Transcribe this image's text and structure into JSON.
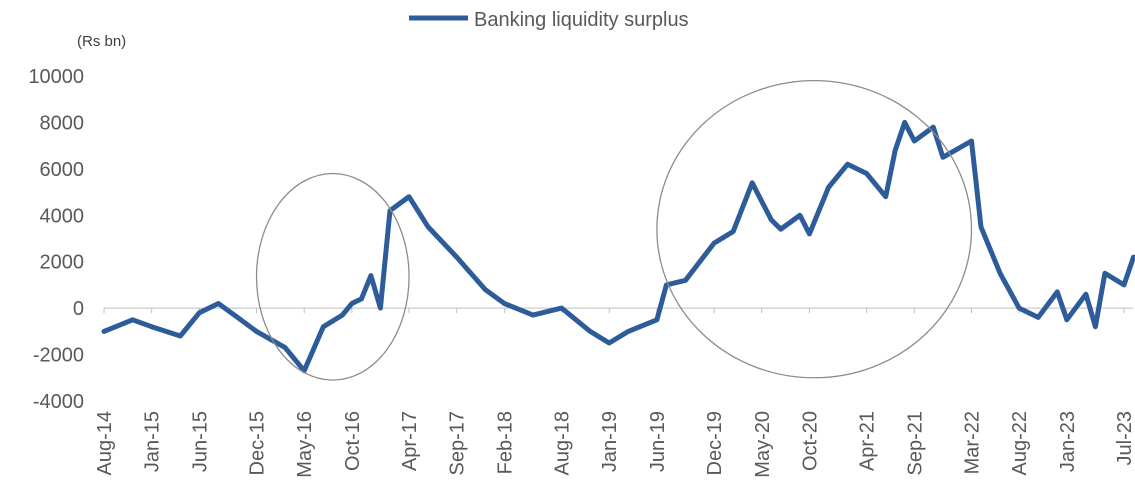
{
  "chart_data": {
    "type": "line",
    "unit_label": "(Rs bn)",
    "legend_position": "top-center",
    "grid": false,
    "ylim": [
      -4000,
      10000
    ],
    "y_ticks": [
      10000,
      8000,
      6000,
      4000,
      2000,
      0,
      -2000,
      -4000
    ],
    "y_tick_labels": [
      "10000",
      "8000",
      "6000",
      "4000",
      "2000",
      "0",
      "-2000",
      "-4000"
    ],
    "x_tick_labels": [
      "Aug-14",
      "Jan-15",
      "Jun-15",
      "Dec-15",
      "May-16",
      "Oct-16",
      "Apr-17",
      "Sep-17",
      "Feb-18",
      "Aug-18",
      "Jan-19",
      "Jun-19",
      "Dec-19",
      "May-20",
      "Oct-20",
      "Apr-21",
      "Sep-21",
      "Mar-22",
      "Aug-22",
      "Jan-23",
      "Jul-23"
    ],
    "series": [
      {
        "name": "Banking liquidity surplus",
        "color": "#2E5C9A",
        "x": [
          "2014-08",
          "2014-11",
          "2015-01",
          "2015-04",
          "2015-06",
          "2015-08",
          "2015-10",
          "2015-12",
          "2016-03",
          "2016-05",
          "2016-07",
          "2016-09",
          "2016-10",
          "2016-11",
          "2016-12",
          "2017-01",
          "2017-02",
          "2017-04",
          "2017-06",
          "2017-09",
          "2017-12",
          "2018-02",
          "2018-05",
          "2018-08",
          "2018-11",
          "2019-01",
          "2019-03",
          "2019-06",
          "2019-07",
          "2019-09",
          "2019-12",
          "2020-02",
          "2020-04",
          "2020-06",
          "2020-07",
          "2020-09",
          "2020-10",
          "2020-12",
          "2021-02",
          "2021-04",
          "2021-06",
          "2021-07",
          "2021-08",
          "2021-09",
          "2021-11",
          "2021-12",
          "2022-03",
          "2022-04",
          "2022-06",
          "2022-08",
          "2022-10",
          "2022-12",
          "2023-01",
          "2023-03",
          "2023-04",
          "2023-05",
          "2023-07",
          "2023-08"
        ],
        "y": [
          -1000,
          -500,
          -800,
          -1200,
          -200,
          200,
          -400,
          -1000,
          -1700,
          -2700,
          -800,
          -300,
          200,
          400,
          1400,
          0,
          4200,
          4800,
          3500,
          2200,
          800,
          200,
          -300,
          0,
          -1000,
          -1500,
          -1000,
          -500,
          1000,
          1200,
          2800,
          3300,
          5400,
          3800,
          3400,
          4000,
          3200,
          5200,
          6200,
          5800,
          4800,
          6800,
          8000,
          7200,
          7800,
          6500,
          7200,
          3500,
          1500,
          0,
          -400,
          700,
          -500,
          600,
          -800,
          1500,
          1000,
          2200
        ]
      }
    ],
    "annotations": [
      {
        "shape": "circle",
        "from": "Dec-15",
        "to": "Apr-17",
        "y_from": -3100,
        "y_to": 5800
      },
      {
        "shape": "circle",
        "from": "Jun-19",
        "to": "Mar-22",
        "y_from": -3000,
        "y_to": 9800
      }
    ]
  }
}
